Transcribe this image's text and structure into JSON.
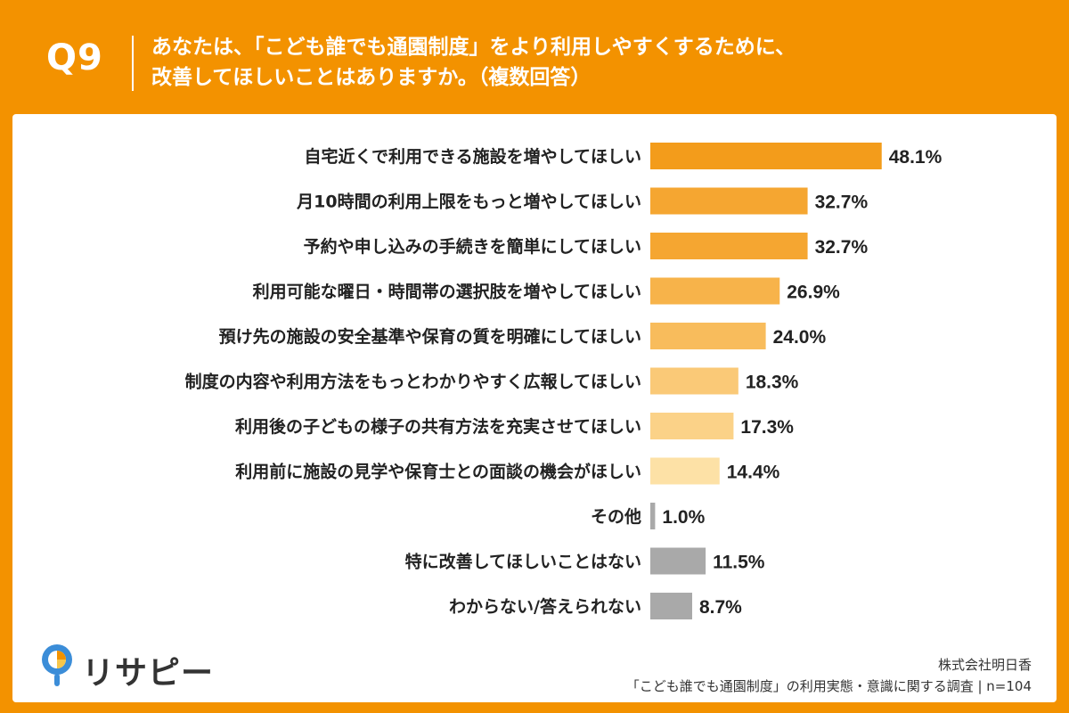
{
  "header": {
    "qnum": "Q9",
    "line1": "あなたは、「こども誰でも通園制度」をより利用しやすくするために、",
    "line2": "改善してほしいことはありますか。（複数回答）"
  },
  "chart_data": {
    "type": "bar",
    "orientation": "horizontal",
    "categories": [
      "自宅近くで利用できる施設を増やしてほしい",
      "月10時間の利用上限をもっと増やしてほしい",
      "予約や申し込みの手続きを簡単にしてほしい",
      "利用可能な曜日・時間帯の選択肢を増やしてほしい",
      "預け先の施設の安全基準や保育の質を明確にしてほしい",
      "制度の内容や利用方法をもっとわかりやすく広報してほしい",
      "利用後の子どもの様子の共有方法を充実させてほしい",
      "利用前に施設の見学や保育士との面談の機会がほしい",
      "その他",
      "特に改善してほしいことはない",
      "わからない/答えられない"
    ],
    "values": [
      48.1,
      32.7,
      32.7,
      26.9,
      24.0,
      18.3,
      17.3,
      14.4,
      1.0,
      11.5,
      8.7
    ],
    "value_labels": [
      "48.1%",
      "32.7%",
      "32.7%",
      "26.9%",
      "24.0%",
      "18.3%",
      "17.3%",
      "14.4%",
      "1.0%",
      "11.5%",
      "8.7%"
    ],
    "colors": [
      "#F39C1B",
      "#F5A631",
      "#F5A631",
      "#F7B34A",
      "#F8BC5C",
      "#FAC977",
      "#FBD288",
      "#FDE1A6",
      "#A9A9A9",
      "#A9A9A9",
      "#A9A9A9"
    ],
    "xlim": [
      0,
      100
    ],
    "grid": false,
    "legend": "none"
  },
  "brand": {
    "logo_text": "リサピー"
  },
  "source": {
    "line1": "株式会社明日香",
    "line2": "「こども誰でも通園制度」の利用実態・意識に関する調査 | n=104"
  }
}
